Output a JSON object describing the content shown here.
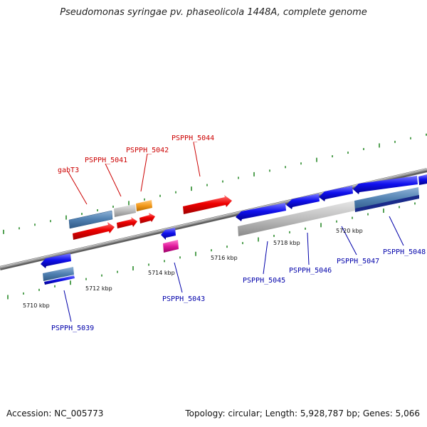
{
  "title": "Pseudomonas syringae pv. phaseolicola 1448A, complete genome",
  "accession": "Accession: NC_005773",
  "summary": "Topology: circular; Length: 5,928,787 bp; Genes: 5,066",
  "colors": {
    "forward_label": "#cc0000",
    "reverse_label": "#0000aa",
    "backbone": "#888888",
    "tick": "#2a8a2a",
    "red": "#ee0000",
    "blue": "#1010ee",
    "gray": "#b8b8b8",
    "steelblue": "#4f7fb0",
    "orange": "#f39a1c",
    "magenta": "#e0199c"
  },
  "tick_labels": [
    "5710 kbp",
    "5712 kbp",
    "5714 kbp",
    "5716 kbp",
    "5718 kbp",
    "5720 kbp"
  ],
  "forward_genes": [
    "gabT3",
    "PSPPH_5041",
    "PSPPH_5042",
    "PSPPH_5044"
  ],
  "reverse_genes": [
    "PSPPH_5039",
    "PSPPH_5043",
    "PSPPH_5045",
    "PSPPH_5046",
    "PSPPH_5047",
    "PSPPH_5048"
  ]
}
